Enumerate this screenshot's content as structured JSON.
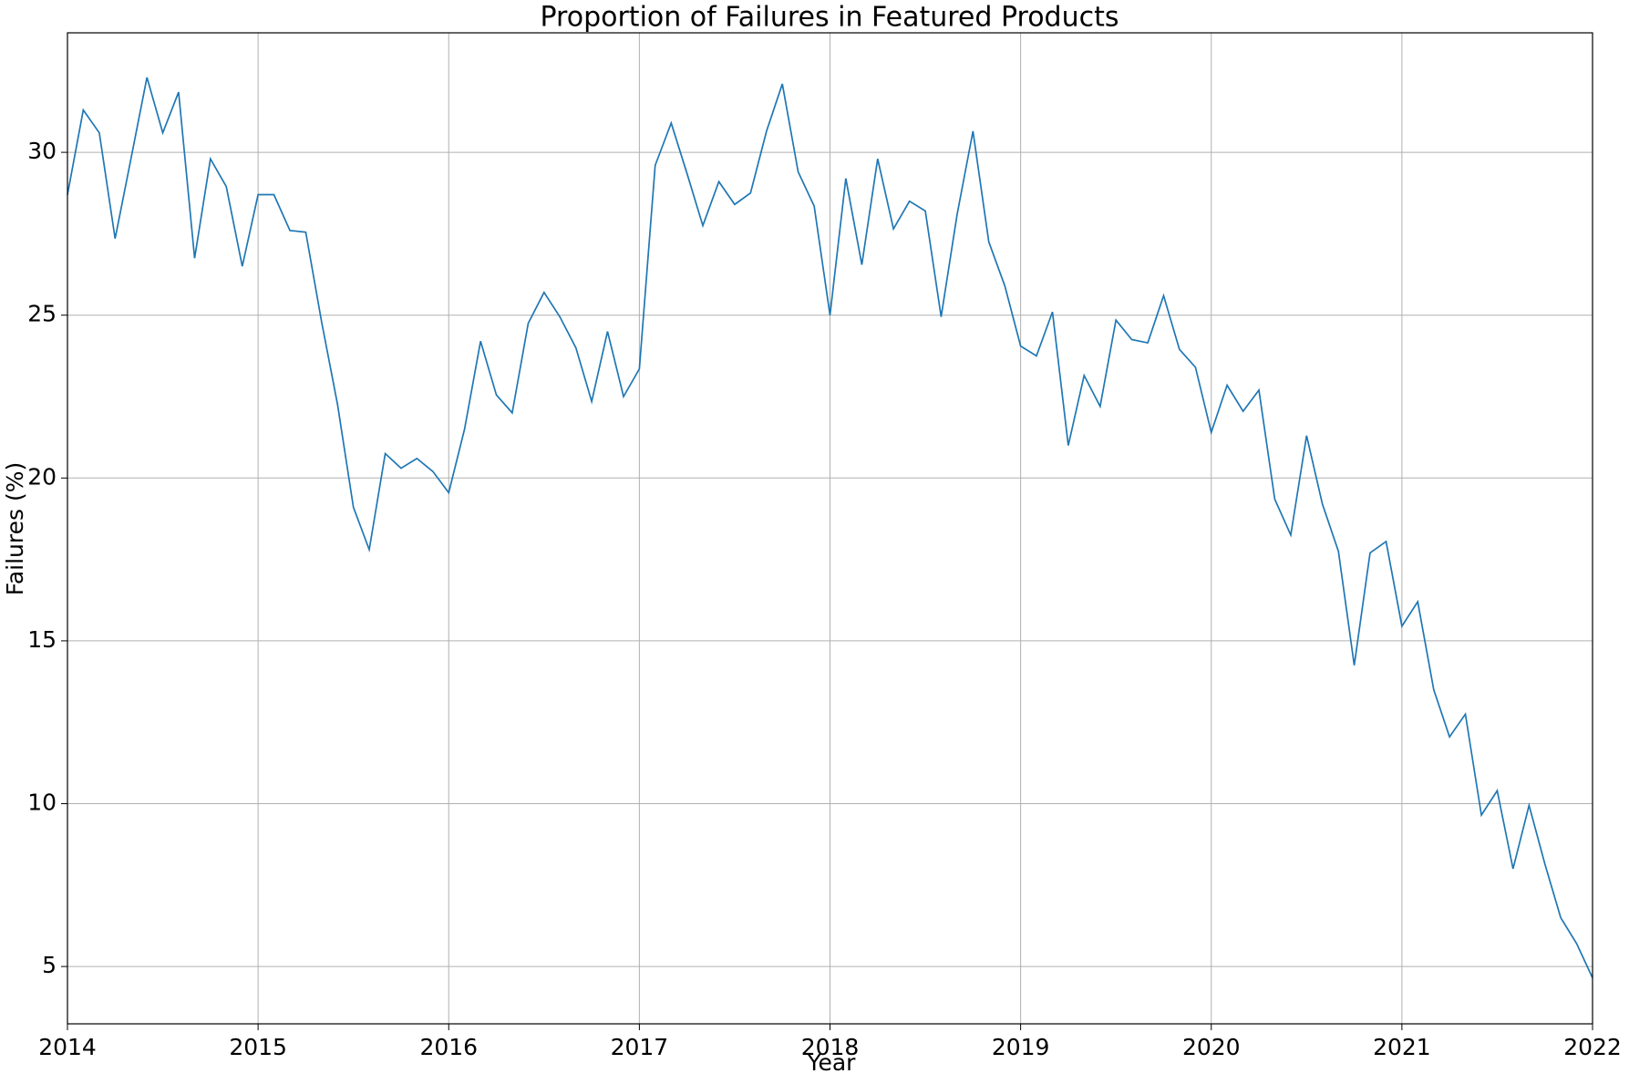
{
  "chart_data": {
    "type": "line",
    "title": "Proportion of Failures in Featured Products",
    "x_label": "Year",
    "y_label": "Failures (%)",
    "x": [
      2014,
      2014.083,
      2014.167,
      2014.25,
      2014.333,
      2014.417,
      2014.5,
      2014.583,
      2014.667,
      2014.75,
      2014.833,
      2014.917,
      2015,
      2015.083,
      2015.167,
      2015.25,
      2015.333,
      2015.417,
      2015.5,
      2015.583,
      2015.667,
      2015.75,
      2015.833,
      2015.917,
      2016,
      2016.083,
      2016.167,
      2016.25,
      2016.333,
      2016.417,
      2016.5,
      2016.583,
      2016.667,
      2016.75,
      2016.833,
      2016.917,
      2017,
      2017.083,
      2017.167,
      2017.25,
      2017.333,
      2017.417,
      2017.5,
      2017.583,
      2017.667,
      2017.75,
      2017.833,
      2017.917,
      2018,
      2018.083,
      2018.167,
      2018.25,
      2018.333,
      2018.417,
      2018.5,
      2018.583,
      2018.667,
      2018.75,
      2018.833,
      2018.917,
      2019,
      2019.083,
      2019.167,
      2019.25,
      2019.333,
      2019.417,
      2019.5,
      2019.583,
      2019.667,
      2019.75,
      2019.833,
      2019.917,
      2020,
      2020.083,
      2020.167,
      2020.25,
      2020.333,
      2020.417,
      2020.5,
      2020.583,
      2020.667,
      2020.75,
      2020.833,
      2020.917,
      2021,
      2021.083,
      2021.167,
      2021.25,
      2021.333,
      2021.417,
      2021.5,
      2021.583,
      2021.667,
      2021.75,
      2021.833,
      2021.917,
      2022
    ],
    "series": [
      {
        "name": "Failures",
        "color": "#1f77b4",
        "values": [
          28.7,
          31.3,
          30.6,
          27.35,
          29.8,
          32.3,
          30.6,
          31.85,
          26.75,
          29.8,
          28.95,
          26.5,
          28.7,
          28.7,
          27.6,
          27.55,
          24.8,
          22.25,
          19.1,
          17.8,
          20.75,
          20.3,
          20.6,
          20.2,
          19.55,
          21.5,
          24.2,
          22.55,
          22.0,
          24.75,
          25.7,
          24.95,
          24.0,
          22.35,
          24.5,
          22.5,
          23.35,
          29.6,
          30.9,
          29.35,
          27.75,
          29.1,
          28.4,
          28.75,
          30.65,
          32.1,
          29.4,
          28.35,
          25.0,
          29.2,
          26.55,
          29.8,
          27.65,
          28.5,
          28.2,
          24.95,
          28.1,
          30.65,
          27.25,
          25.9,
          24.05,
          23.75,
          25.1,
          21.0,
          23.15,
          22.2,
          24.85,
          24.25,
          24.15,
          25.6,
          23.95,
          23.4,
          21.4,
          22.85,
          22.05,
          22.7,
          19.35,
          18.25,
          21.3,
          19.2,
          17.75,
          14.25,
          17.7,
          18.05,
          15.45,
          16.2,
          13.5,
          12.05,
          12.75,
          9.65,
          10.4,
          8.0,
          9.95,
          8.15,
          6.5,
          5.7,
          4.65
        ]
      }
    ],
    "xlim": [
      2014,
      2022
    ],
    "xticks": [
      2014,
      2015,
      2016,
      2017,
      2018,
      2019,
      2020,
      2021,
      2022
    ],
    "ylim": [
      3.24,
      33.67
    ],
    "yticks": [
      5,
      10,
      15,
      20,
      25,
      30
    ],
    "grid": true
  }
}
